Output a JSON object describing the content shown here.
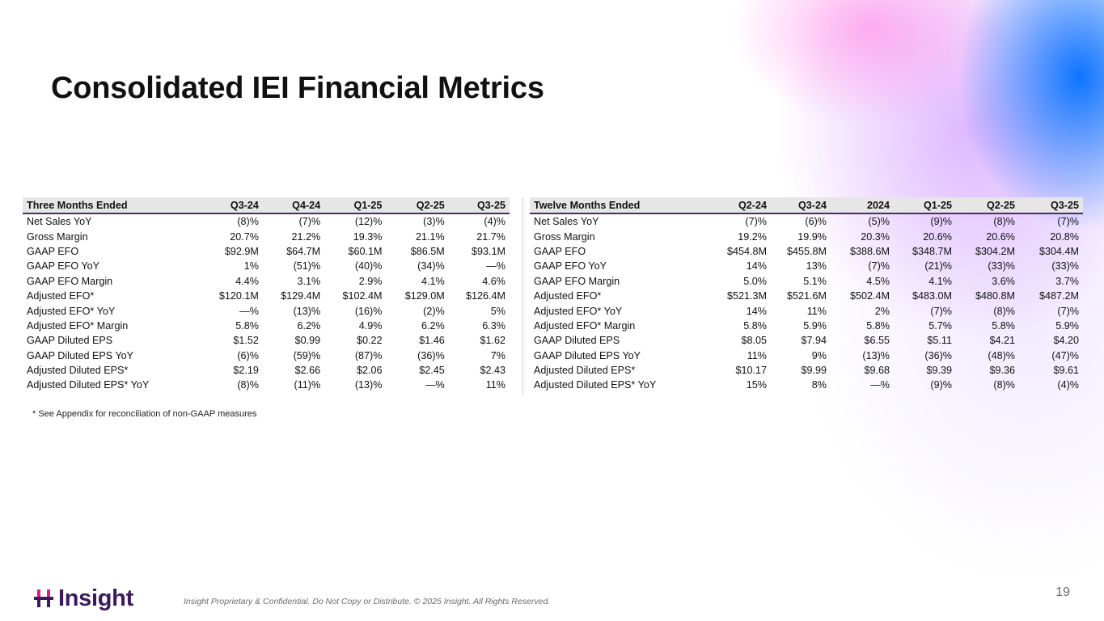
{
  "title": "Consolidated IEI Financial Metrics",
  "three_months": {
    "headers": [
      "Three Months Ended",
      "Q3-24",
      "Q4-24",
      "Q1-25",
      "Q2-25",
      "Q3-25"
    ],
    "rows": [
      [
        "Net Sales YoY",
        "(8)%",
        "(7)%",
        "(12)%",
        "(3)%",
        "(4)%"
      ],
      [
        "Gross Margin",
        "20.7%",
        "21.2%",
        "19.3%",
        "21.1%",
        "21.7%"
      ],
      [
        "GAAP EFO",
        "$92.9M",
        "$64.7M",
        "$60.1M",
        "$86.5M",
        "$93.1M"
      ],
      [
        "GAAP EFO YoY",
        "1%",
        "(51)%",
        "(40)%",
        "(34)%",
        "—%"
      ],
      [
        "GAAP EFO Margin",
        "4.4%",
        "3.1%",
        "2.9%",
        "4.1%",
        "4.6%"
      ],
      [
        "Adjusted EFO*",
        "$120.1M",
        "$129.4M",
        "$102.4M",
        "$129.0M",
        "$126.4M"
      ],
      [
        "Adjusted EFO* YoY",
        "—%",
        "(13)%",
        "(16)%",
        "(2)%",
        "5%"
      ],
      [
        "Adjusted EFO* Margin",
        "5.8%",
        "6.2%",
        "4.9%",
        "6.2%",
        "6.3%"
      ],
      [
        "GAAP Diluted EPS",
        "$1.52",
        "$0.99",
        "$0.22",
        "$1.46",
        "$1.62"
      ],
      [
        "GAAP Diluted EPS YoY",
        "(6)%",
        "(59)%",
        "(87)%",
        "(36)%",
        "7%"
      ],
      [
        "Adjusted Diluted EPS*",
        "$2.19",
        "$2.66",
        "$2.06",
        "$2.45",
        "$2.43"
      ],
      [
        "Adjusted Diluted EPS* YoY",
        "(8)%",
        "(11)%",
        "(13)%",
        "—%",
        "11%"
      ]
    ]
  },
  "twelve_months": {
    "headers": [
      "Twelve Months Ended",
      "Q2-24",
      "Q3-24",
      "2024",
      "Q1-25",
      "Q2-25",
      "Q3-25"
    ],
    "rows": [
      [
        "Net Sales YoY",
        "(7)%",
        "(6)%",
        "(5)%",
        "(9)%",
        "(8)%",
        "(7)%"
      ],
      [
        "Gross Margin",
        "19.2%",
        "19.9%",
        "20.3%",
        "20.6%",
        "20.6%",
        "20.8%"
      ],
      [
        "GAAP EFO",
        "$454.8M",
        "$455.8M",
        "$388.6M",
        "$348.7M",
        "$304.2M",
        "$304.4M"
      ],
      [
        "GAAP EFO YoY",
        "14%",
        "13%",
        "(7)%",
        "(21)%",
        "(33)%",
        "(33)%"
      ],
      [
        "GAAP EFO Margin",
        "5.0%",
        "5.1%",
        "4.5%",
        "4.1%",
        "3.6%",
        "3.7%"
      ],
      [
        "Adjusted EFO*",
        "$521.3M",
        "$521.6M",
        "$502.4M",
        "$483.0M",
        "$480.8M",
        "$487.2M"
      ],
      [
        "Adjusted EFO* YoY",
        "14%",
        "11%",
        "2%",
        "(7)%",
        "(8)%",
        "(7)%"
      ],
      [
        "Adjusted EFO* Margin",
        "5.8%",
        "5.9%",
        "5.8%",
        "5.7%",
        "5.8%",
        "5.9%"
      ],
      [
        "GAAP Diluted EPS",
        "$8.05",
        "$7.94",
        "$6.55",
        "$5.11",
        "$4.21",
        "$4.20"
      ],
      [
        "GAAP Diluted EPS YoY",
        "11%",
        "9%",
        "(13)%",
        "(36)%",
        "(48)%",
        "(47)%"
      ],
      [
        "Adjusted Diluted EPS*",
        "$10.17",
        "$9.99",
        "$9.68",
        "$9.39",
        "$9.36",
        "$9.61"
      ],
      [
        "Adjusted Diluted EPS* YoY",
        "15%",
        "8%",
        "—%",
        "(9)%",
        "(8)%",
        "(4)%"
      ]
    ]
  },
  "footnote": "* See Appendix for reconciliation of non-GAAP measures",
  "footer": {
    "logo_text": "Insight",
    "legal": "Insight Proprietary & Confidential. Do Not Copy or Distribute. © 2025 Insight. All Rights Reserved.",
    "page_number": "19"
  },
  "colors": {
    "accent": "#4b2a6e",
    "brand_pink": "#e8197a",
    "brand_purple": "#3b1a5e"
  }
}
